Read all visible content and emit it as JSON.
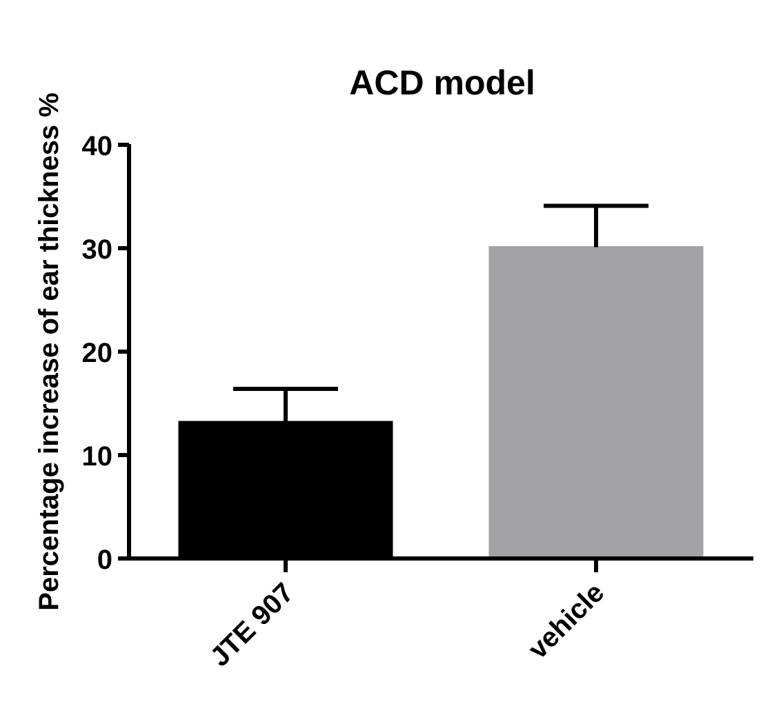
{
  "chart_data": {
    "type": "bar",
    "title": "ACD model",
    "xlabel": "",
    "ylabel": "Percentage increase of ear thickness %",
    "categories": [
      "JTE 907",
      "vehicle"
    ],
    "values": [
      13.2,
      30.1
    ],
    "error_upper": [
      16.4,
      34.1
    ],
    "bar_colors": [
      "#000000",
      "#a3a3a6"
    ],
    "ylim": [
      0,
      40
    ],
    "yticks": [
      0,
      10,
      20,
      30,
      40
    ],
    "ytick_labels": [
      "0",
      "10",
      "20",
      "30",
      "40"
    ],
    "grid": false,
    "legend": "none"
  }
}
